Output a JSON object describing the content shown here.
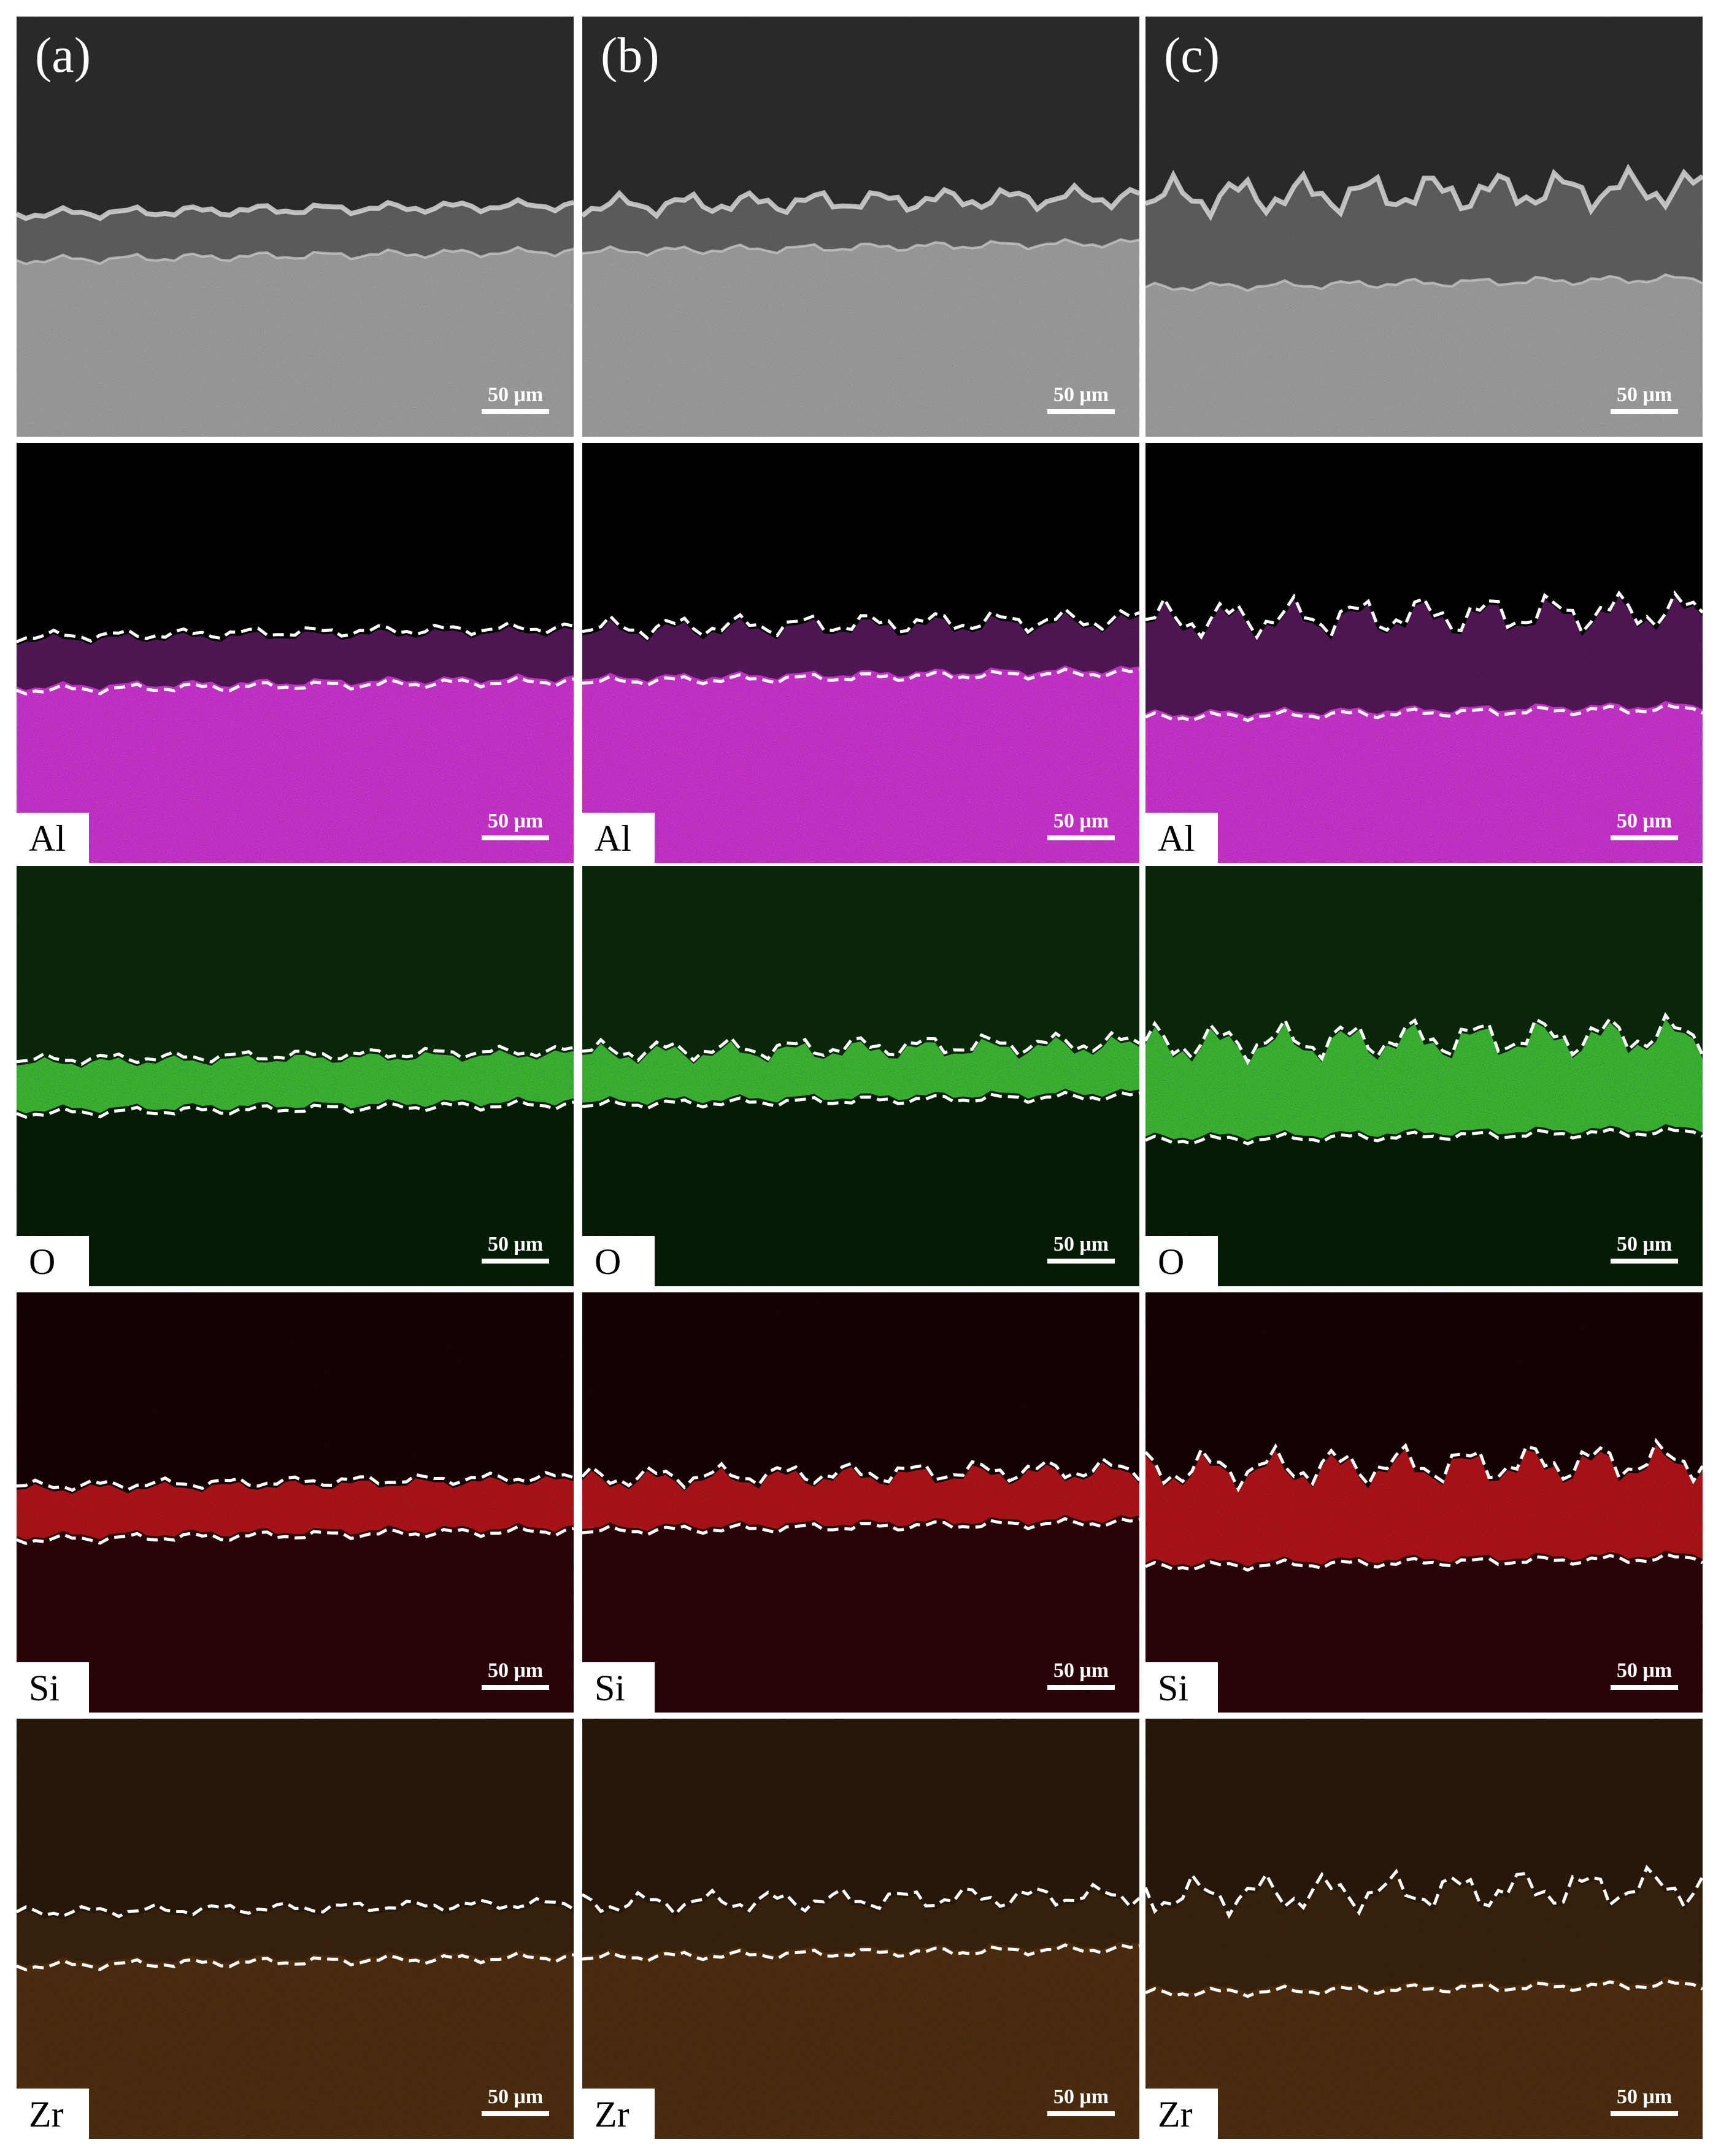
{
  "figure": {
    "rows": [
      {
        "cells": [
          {
            "panel_label": "(a)",
            "scale_bar": "50 μm"
          },
          {
            "panel_label": "(b)",
            "scale_bar": "50 μm"
          },
          {
            "panel_label": "(c)",
            "scale_bar": "50 μm"
          }
        ]
      },
      {
        "cells": [
          {
            "element": "Al",
            "scale_bar": "50 μm"
          },
          {
            "element": "Al",
            "scale_bar": "50 μm"
          },
          {
            "element": "Al",
            "scale_bar": "50 μm"
          }
        ]
      },
      {
        "cells": [
          {
            "element": "O",
            "scale_bar": "50 μm"
          },
          {
            "element": "O",
            "scale_bar": "50 μm"
          },
          {
            "element": "O",
            "scale_bar": "50 μm"
          }
        ]
      },
      {
        "cells": [
          {
            "element": "Si",
            "scale_bar": "50 μm"
          },
          {
            "element": "Si",
            "scale_bar": "50 μm"
          },
          {
            "element": "Si",
            "scale_bar": "50 μm"
          }
        ]
      },
      {
        "cells": [
          {
            "element": "Zr",
            "scale_bar": "50 μm"
          },
          {
            "element": "Zr",
            "scale_bar": "50 μm"
          },
          {
            "element": "Zr",
            "scale_bar": "50 μm"
          }
        ]
      }
    ]
  }
}
